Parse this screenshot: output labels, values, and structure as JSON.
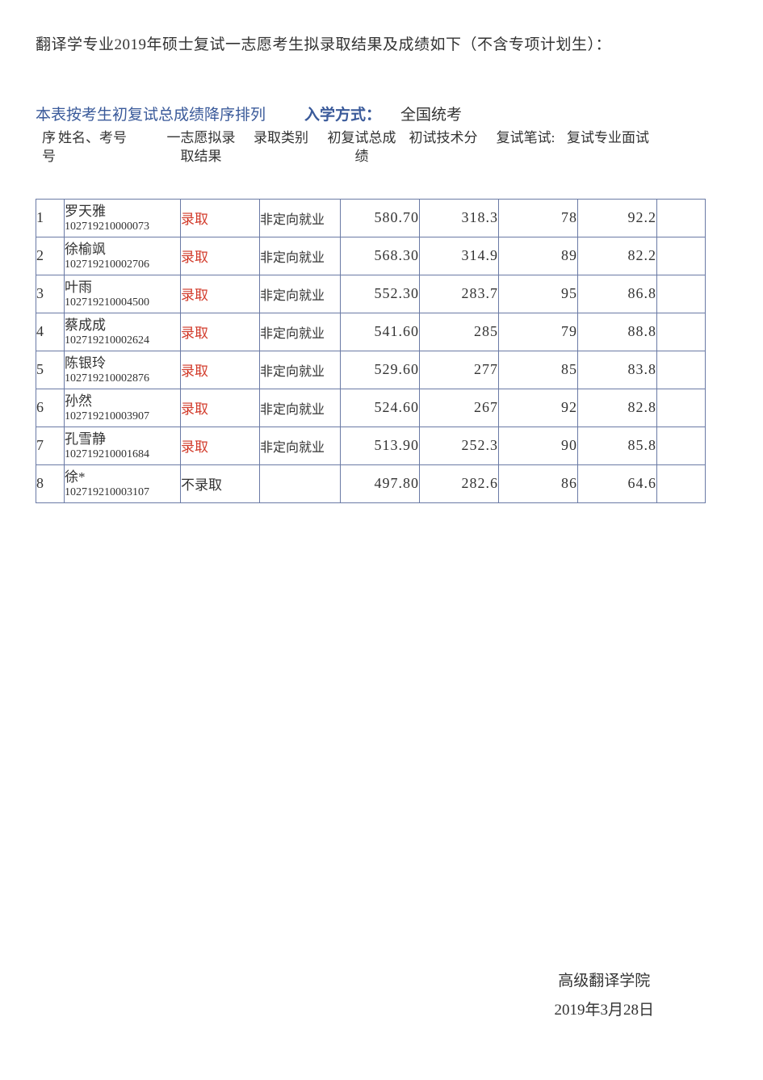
{
  "page_title": "翻译学专业2019年硕士复试一志愿考生拟录取结果及成绩如下（不含专项计划生）：",
  "sort_note": "本表按考生初复试总成绩降序排列",
  "entry_mode_label": "入学方式：",
  "entry_mode_value": "全国统考",
  "colors": {
    "header_blue": "#3a5a9a",
    "accept_red": "#d23a2a",
    "text": "#333333",
    "border": "#6a7aa5",
    "background": "#ffffff"
  },
  "headers": {
    "seq": "序号",
    "name": "姓名、考号",
    "result": "一志愿拟录取结果",
    "category": "录取类别",
    "total": "初复试总成绩",
    "tech": "初试技术分",
    "written": "复试笔试:",
    "interview": "复试专业面试"
  },
  "result_labels": {
    "accept": "录取",
    "reject": "不录取"
  },
  "category_labels": {
    "nondirected": "非定向就业"
  },
  "rows": [
    {
      "seq": "1",
      "name": "罗天雅",
      "id": "102719210000073",
      "result": "accept",
      "category": "nondirected",
      "total": "580.70",
      "tech": "318.3",
      "written": "78",
      "interview": "92.2"
    },
    {
      "seq": "2",
      "name": "徐榆飒",
      "id": "102719210002706",
      "result": "accept",
      "category": "nondirected",
      "total": "568.30",
      "tech": "314.9",
      "written": "89",
      "interview": "82.2"
    },
    {
      "seq": "3",
      "name": "叶雨",
      "id": "102719210004500",
      "result": "accept",
      "category": "nondirected",
      "total": "552.30",
      "tech": "283.7",
      "written": "95",
      "interview": "86.8"
    },
    {
      "seq": "4",
      "name": "蔡成成",
      "id": "102719210002624",
      "result": "accept",
      "category": "nondirected",
      "total": "541.60",
      "tech": "285",
      "written": "79",
      "interview": "88.8"
    },
    {
      "seq": "5",
      "name": "陈银玲",
      "id": "102719210002876",
      "result": "accept",
      "category": "nondirected",
      "total": "529.60",
      "tech": "277",
      "written": "85",
      "interview": "83.8"
    },
    {
      "seq": "6",
      "name": "孙然",
      "id": "102719210003907",
      "result": "accept",
      "category": "nondirected",
      "total": "524.60",
      "tech": "267",
      "written": "92",
      "interview": "82.8"
    },
    {
      "seq": "7",
      "name": "孔雪静",
      "id": "102719210001684",
      "result": "accept",
      "category": "nondirected",
      "total": "513.90",
      "tech": "252.3",
      "written": "90",
      "interview": "85.8"
    },
    {
      "seq": "8",
      "name": "徐*",
      "id": "102719210003107",
      "result": "reject",
      "category": "",
      "total": "497.80",
      "tech": "282.6",
      "written": "86",
      "interview": "64.6"
    }
  ],
  "footer": {
    "dept": "高级翻译学院",
    "date": "2019年3月28日"
  }
}
